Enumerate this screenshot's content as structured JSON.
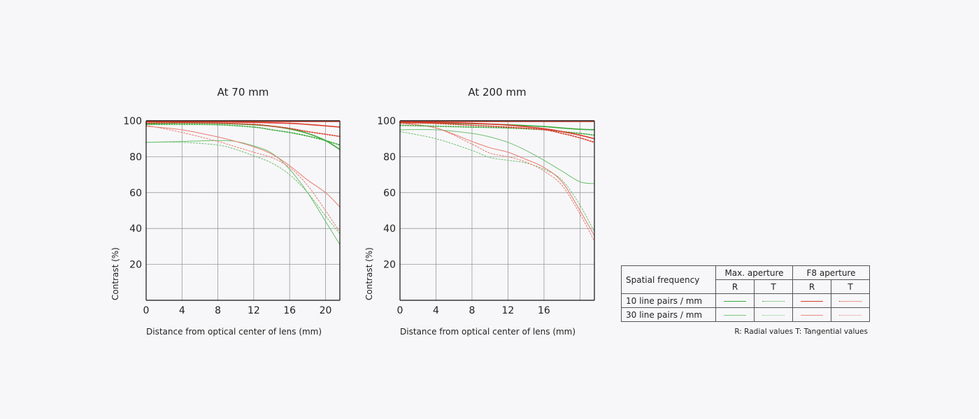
{
  "colors": {
    "green": "#3aa83a",
    "red": "#d93b2b",
    "grid": "#9a9a9a",
    "frame": "#111111"
  },
  "chart_data": [
    {
      "type": "line",
      "title": "At 70 mm",
      "xlabel": "Distance from optical center of lens (mm)",
      "ylabel": "Contrast (%)",
      "xlim": [
        0,
        21.6
      ],
      "ylim": [
        0,
        100
      ],
      "xticks": [
        0,
        4,
        8,
        12,
        16,
        20
      ],
      "xgrid": [
        4,
        8,
        12,
        16,
        20
      ],
      "yticks": [
        20,
        40,
        60,
        80,
        100
      ],
      "grid": true,
      "series": [
        {
          "group": "Max. aperture",
          "freq": "10 line pairs / mm",
          "kind": "R",
          "color": "green",
          "dashed": false,
          "bold": true,
          "x": [
            0,
            4,
            8,
            12,
            14,
            16,
            18,
            20,
            21.6
          ],
          "y": [
            98.5,
            98.8,
            98.6,
            97.8,
            97.0,
            95.5,
            93.0,
            89.0,
            84.0
          ]
        },
        {
          "group": "Max. aperture",
          "freq": "10 line pairs / mm",
          "kind": "T",
          "color": "green",
          "dashed": true,
          "bold": true,
          "x": [
            0,
            4,
            8,
            12,
            14,
            16,
            18,
            20,
            21.6
          ],
          "y": [
            98.0,
            98.0,
            97.8,
            96.5,
            95.0,
            93.5,
            91.5,
            89.0,
            86.5
          ]
        },
        {
          "group": "F8 aperture",
          "freq": "10 line pairs / mm",
          "kind": "R",
          "color": "red",
          "dashed": false,
          "bold": true,
          "x": [
            0,
            4,
            8,
            12,
            16,
            18,
            20,
            21.6
          ],
          "y": [
            99.5,
            99.5,
            99.4,
            99.1,
            98.6,
            98.0,
            97.2,
            96.5
          ]
        },
        {
          "group": "F8 aperture",
          "freq": "10 line pairs / mm",
          "kind": "T",
          "color": "red",
          "dashed": true,
          "bold": true,
          "x": [
            0,
            4,
            8,
            12,
            14,
            16,
            18,
            20,
            21.6
          ],
          "y": [
            98.8,
            98.9,
            98.7,
            98.0,
            97.0,
            95.8,
            94.0,
            92.5,
            91.3
          ]
        },
        {
          "group": "Max. aperture",
          "freq": "30 line pairs / mm",
          "kind": "R",
          "color": "green",
          "dashed": false,
          "bold": false,
          "x": [
            0,
            4,
            8,
            10,
            12,
            14,
            16,
            18,
            20,
            21.6
          ],
          "y": [
            88.0,
            88.5,
            89.0,
            88.5,
            86.0,
            82.0,
            73.0,
            60.0,
            44.0,
            31.0
          ]
        },
        {
          "group": "Max. aperture",
          "freq": "30 line pairs / mm",
          "kind": "T",
          "color": "green",
          "dashed": true,
          "bold": false,
          "x": [
            0,
            4,
            8,
            10,
            12,
            14,
            16,
            18,
            20,
            21.6
          ],
          "y": [
            88.0,
            88.0,
            86.5,
            84.0,
            80.5,
            76.5,
            70.0,
            60.0,
            47.0,
            37.0
          ]
        },
        {
          "group": "F8 aperture",
          "freq": "30 line pairs / mm",
          "kind": "R",
          "color": "red",
          "dashed": false,
          "bold": false,
          "x": [
            0,
            4,
            8,
            10,
            12,
            14,
            16,
            18,
            20,
            21.6
          ],
          "y": [
            97.0,
            95.0,
            91.0,
            88.5,
            85.5,
            81.5,
            75.0,
            67.0,
            60.0,
            52.0
          ]
        },
        {
          "group": "F8 aperture",
          "freq": "30 line pairs / mm",
          "kind": "T",
          "color": "red",
          "dashed": true,
          "bold": false,
          "x": [
            0,
            4,
            8,
            10,
            12,
            14,
            16,
            18,
            20,
            21.6
          ],
          "y": [
            97.5,
            93.5,
            88.5,
            85.5,
            82.5,
            79.5,
            74.0,
            64.0,
            50.0,
            38.0
          ]
        }
      ]
    },
    {
      "type": "line",
      "title": "At 200 mm",
      "xlabel": "Distance from optical center of lens (mm)",
      "ylabel": "Contrast (%)",
      "xlim": [
        0,
        21.6
      ],
      "ylim": [
        0,
        100
      ],
      "xticks": [
        0,
        4,
        8,
        12,
        16
      ],
      "xgrid": [
        4,
        8,
        12,
        16,
        20
      ],
      "yticks": [
        20,
        40,
        60,
        80,
        100
      ],
      "grid": true,
      "series": [
        {
          "group": "Max. aperture",
          "freq": "10 line pairs / mm",
          "kind": "R",
          "color": "green",
          "dashed": false,
          "bold": true,
          "x": [
            0,
            4,
            8,
            12,
            16,
            18,
            20,
            21.6
          ],
          "y": [
            99.0,
            98.8,
            98.4,
            97.8,
            96.8,
            96.0,
            95.3,
            95.0
          ]
        },
        {
          "group": "Max. aperture",
          "freq": "10 line pairs / mm",
          "kind": "T",
          "color": "green",
          "dashed": true,
          "bold": true,
          "x": [
            0,
            4,
            8,
            12,
            16,
            18,
            20,
            21.6
          ],
          "y": [
            97.5,
            97.0,
            96.5,
            96.0,
            95.0,
            94.0,
            93.0,
            92.0
          ]
        },
        {
          "group": "F8 aperture",
          "freq": "10 line pairs / mm",
          "kind": "R",
          "color": "red",
          "dashed": false,
          "bold": true,
          "x": [
            0,
            4,
            8,
            12,
            16,
            18,
            20,
            21.6
          ],
          "y": [
            99.4,
            99.1,
            98.6,
            97.6,
            95.6,
            94.0,
            92.0,
            90.0
          ]
        },
        {
          "group": "F8 aperture",
          "freq": "10 line pairs / mm",
          "kind": "T",
          "color": "red",
          "dashed": true,
          "bold": true,
          "x": [
            0,
            4,
            8,
            12,
            16,
            18,
            20,
            21.6
          ],
          "y": [
            99.0,
            98.5,
            97.5,
            96.5,
            95.0,
            93.0,
            90.5,
            88.0
          ]
        },
        {
          "group": "Max. aperture",
          "freq": "30 line pairs / mm",
          "kind": "R",
          "color": "green",
          "dashed": false,
          "bold": false,
          "x": [
            0,
            4,
            8,
            10,
            12,
            14,
            16,
            18,
            20,
            21.6
          ],
          "y": [
            95.0,
            95.0,
            93.0,
            91.0,
            88.0,
            83.5,
            78.0,
            72.0,
            66.0,
            65.0
          ]
        },
        {
          "group": "Max. aperture",
          "freq": "30 line pairs / mm",
          "kind": "T",
          "color": "green",
          "dashed": true,
          "bold": false,
          "x": [
            0,
            4,
            8,
            10,
            12,
            14,
            16,
            18,
            20,
            21.6
          ],
          "y": [
            94.0,
            90.0,
            83.5,
            79.5,
            78.0,
            76.5,
            73.0,
            67.0,
            53.0,
            38.0
          ]
        },
        {
          "group": "F8 aperture",
          "freq": "30 line pairs / mm",
          "kind": "R",
          "color": "red",
          "dashed": false,
          "bold": false,
          "x": [
            0,
            4,
            8,
            10,
            12,
            14,
            16,
            18,
            20,
            21.6
          ],
          "y": [
            99.0,
            96.0,
            88.5,
            85.0,
            82.5,
            78.5,
            74.0,
            66.0,
            50.0,
            36.0
          ]
        },
        {
          "group": "F8 aperture",
          "freq": "30 line pairs / mm",
          "kind": "T",
          "color": "red",
          "dashed": true,
          "bold": false,
          "x": [
            0,
            4,
            8,
            10,
            12,
            14,
            16,
            18,
            20,
            21.6
          ],
          "y": [
            98.5,
            96.0,
            87.0,
            82.0,
            80.0,
            77.0,
            72.0,
            64.0,
            48.0,
            33.0
          ]
        }
      ]
    }
  ],
  "legend": {
    "header_label": "Spatial frequency",
    "groups": [
      "Max. aperture",
      "F8 aperture"
    ],
    "sub_r": "R",
    "sub_t": "T",
    "rows": [
      "10 line pairs / mm",
      "30 line pairs / mm"
    ],
    "note": "R: Radial values  T: Tangential values"
  }
}
